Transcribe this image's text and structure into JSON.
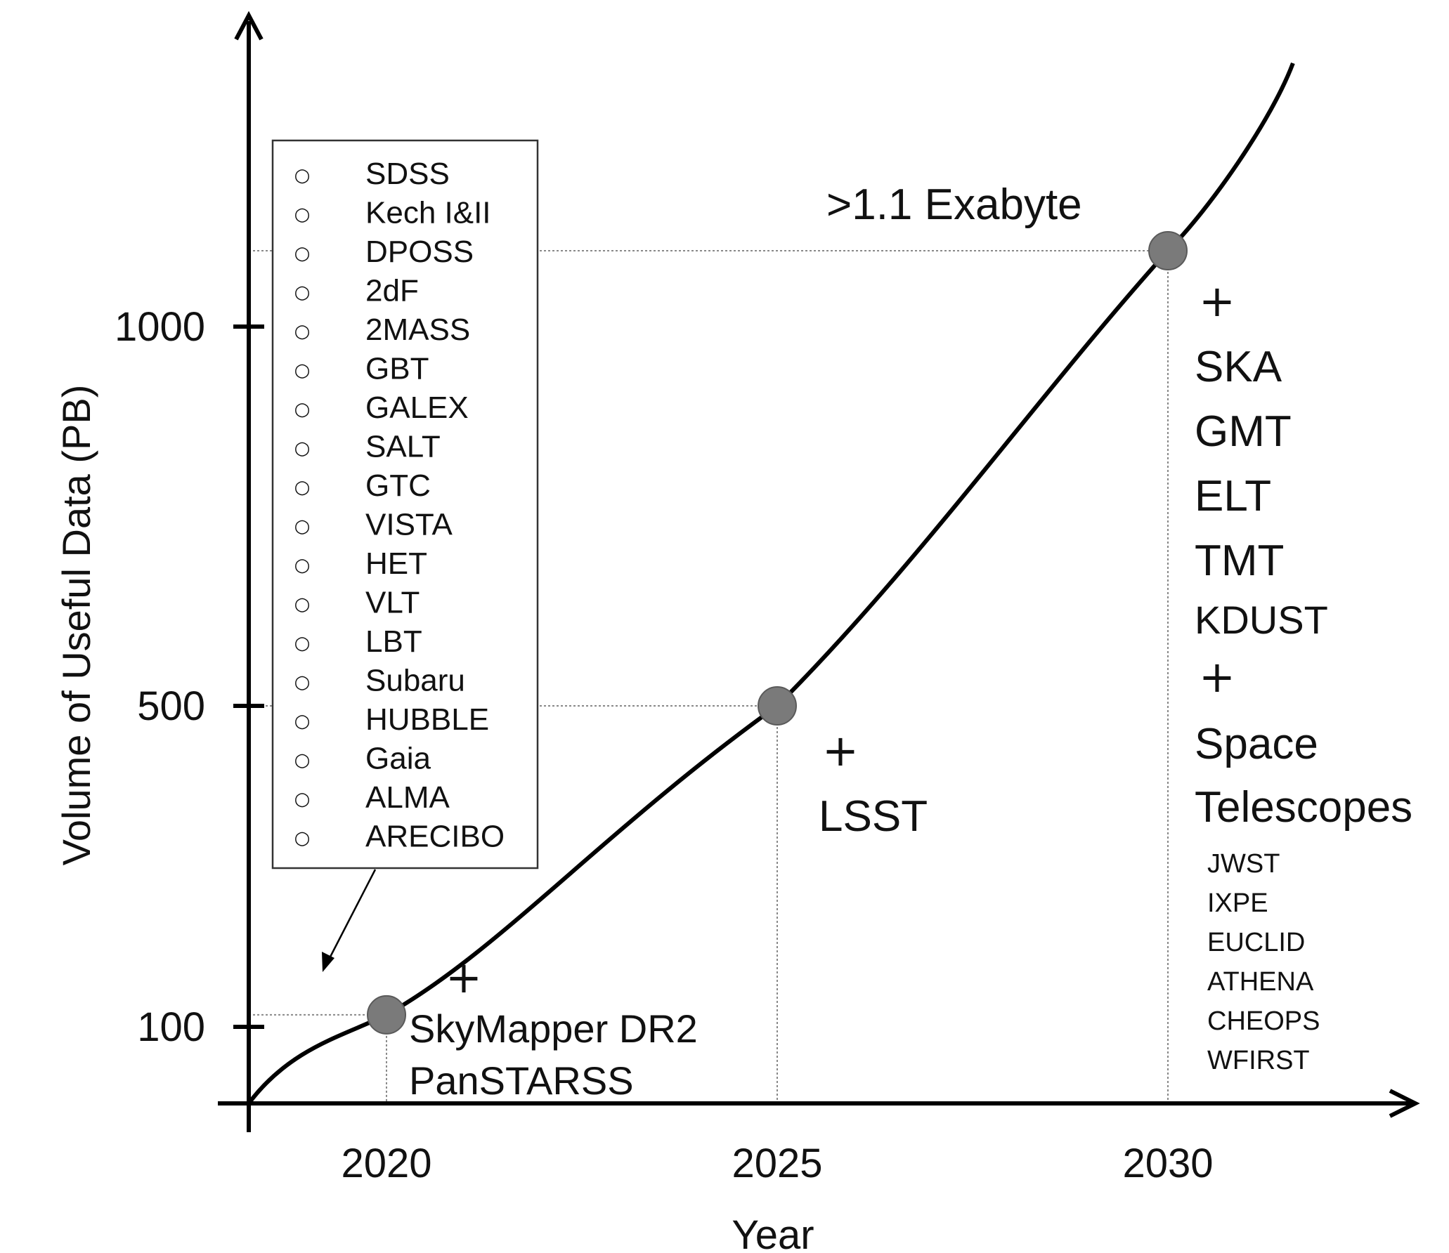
{
  "chart_data": {
    "type": "line",
    "xlabel": "Year",
    "ylabel": "Volume of Useful Data (PB)",
    "x_ticks": [
      "2020",
      "2025",
      "2030"
    ],
    "y_ticks": [
      "100",
      "500",
      "1000"
    ],
    "milestones": [
      {
        "x": 2020,
        "y": 115
      },
      {
        "x": 2025,
        "y": 500
      },
      {
        "x": 2030,
        "y": 1100
      }
    ],
    "annotations": {
      "exabyte": ">1.1 Exabyte",
      "m2020": [
        "+",
        "SkyMapper DR2",
        "PanSTARSS"
      ],
      "m2025": [
        "+",
        "LSST"
      ],
      "m2030": [
        "+",
        "SKA",
        "GMT",
        "ELT",
        "TMT",
        "KDUST",
        "+",
        "Space",
        "Telescopes"
      ],
      "space_telescopes": [
        "JWST",
        "IXPE",
        "EUCLID",
        "ATHENA",
        "CHEOPS",
        "WFIRST"
      ]
    },
    "legend": {
      "bullet": "○",
      "items": [
        "SDSS",
        "Kech I&II",
        "DPOSS",
        "2dF",
        "2MASS",
        "GBT",
        "GALEX",
        "SALT",
        "GTC",
        "VISTA",
        "HET",
        "VLT",
        "LBT",
        "Subaru",
        "HUBBLE",
        "Gaia",
        "ALMA",
        "ARECIBO"
      ]
    },
    "colors": {
      "curve": "#000000",
      "marker": "#7a7a7a",
      "guide": "#888888"
    }
  }
}
